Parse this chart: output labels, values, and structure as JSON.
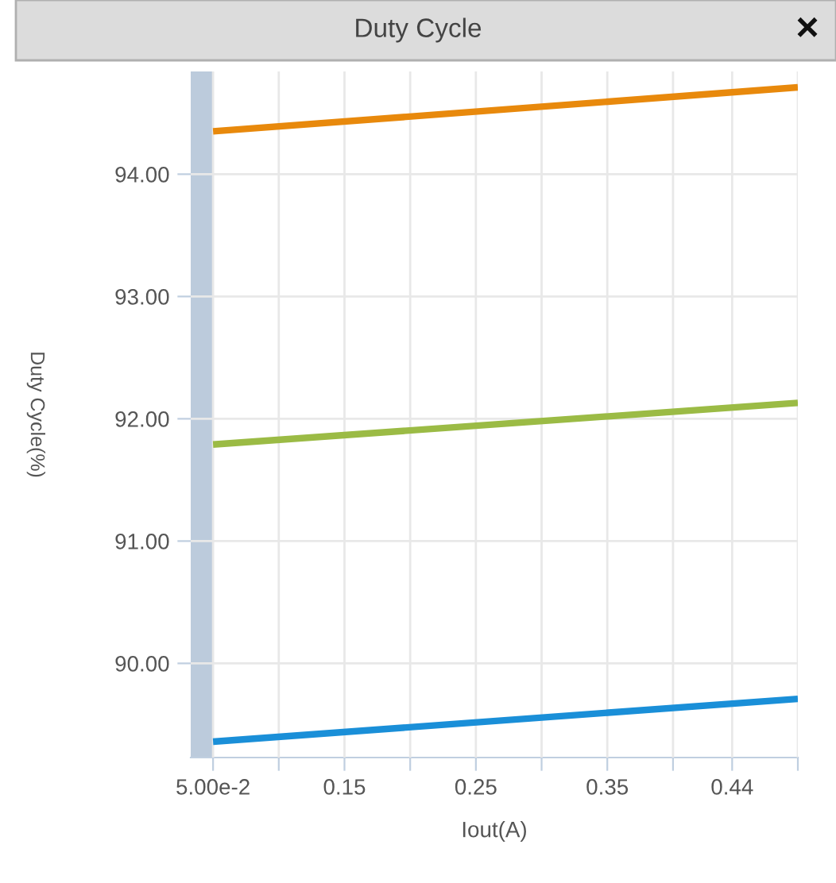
{
  "chart_data": {
    "type": "line",
    "title": "Duty Cycle",
    "xlabel": "Iout(A)",
    "ylabel": "Duty Cycle(%)",
    "annotations": [
      "×"
    ],
    "x": [
      0.05,
      0.495
    ],
    "series": [
      {
        "color": "#e8890c",
        "values": [
          94.35,
          94.71
        ]
      },
      {
        "color": "#9bbb45",
        "values": [
          91.79,
          92.13
        ]
      },
      {
        "color": "#1a8fd8",
        "values": [
          89.36,
          89.71
        ]
      }
    ],
    "xlim": [
      0.033,
      0.495
    ],
    "xticks": [
      {
        "value": 0.05,
        "label": "5.00e-2"
      },
      {
        "value": 0.1,
        "label": null
      },
      0.15,
      {
        "value": 0.2,
        "label": null
      },
      0.25,
      {
        "value": 0.3,
        "label": null
      },
      0.35,
      {
        "value": 0.4,
        "label": null
      },
      {
        "value": 0.445,
        "label": "0.44"
      },
      {
        "value": 0.495,
        "label": null
      }
    ],
    "ylim": [
      89.23,
      94.84
    ],
    "yticks": [
      {
        "value": 90,
        "label": "90.00"
      },
      {
        "value": 91,
        "label": "91.00"
      },
      {
        "value": 92,
        "label": "92.00"
      },
      {
        "value": 93,
        "label": "93.00"
      },
      {
        "value": 94,
        "label": "94.00"
      }
    ],
    "bands": [
      {
        "axis": "x",
        "from": 0.033,
        "to": 0.05,
        "color": "#bccbdc"
      }
    ],
    "grid": true,
    "marker": "none",
    "line_style": "solid",
    "legend": false
  }
}
